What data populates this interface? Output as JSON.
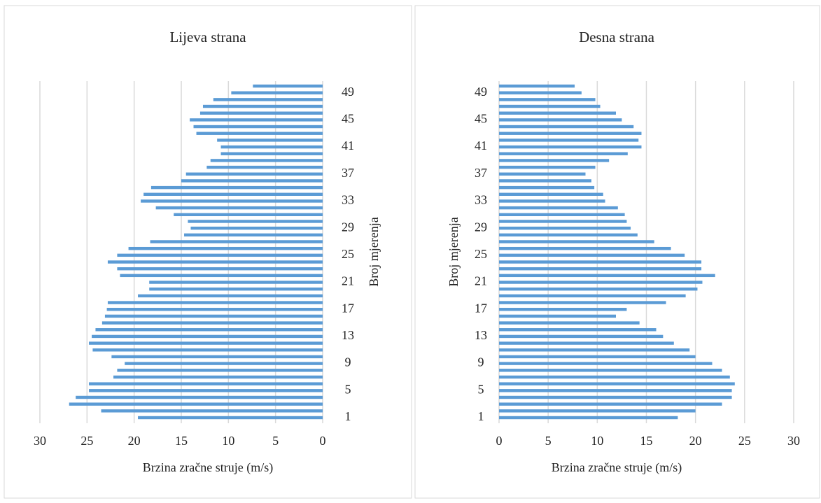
{
  "chart_data": [
    {
      "type": "bar",
      "orientation": "horizontal",
      "title": "Lijeva strana",
      "xlabel": "Brzina zračne struje (m/s)",
      "ylabel": "Broj mjerenja",
      "x_reversed": true,
      "yaxis_side": "right",
      "color": "#5b9bd5",
      "grid": true,
      "categories": [
        1,
        null,
        null,
        null,
        5,
        null,
        null,
        null,
        9,
        null,
        null,
        null,
        13,
        null,
        null,
        null,
        17,
        null,
        null,
        null,
        21,
        null,
        null,
        null,
        25,
        null,
        null,
        null,
        29,
        null,
        null,
        null,
        33,
        null,
        null,
        null,
        37,
        null,
        null,
        null,
        41,
        null,
        null,
        null,
        45,
        null,
        null,
        null,
        49,
        null
      ],
      "values": [
        19.6,
        23.5,
        26.9,
        26.2,
        24.8,
        24.8,
        22.2,
        21.8,
        21.0,
        22.4,
        24.4,
        24.8,
        24.5,
        24.1,
        23.4,
        23.1,
        22.9,
        22.8,
        19.6,
        18.4,
        18.4,
        21.5,
        21.8,
        22.8,
        21.8,
        20.6,
        18.3,
        14.7,
        14.0,
        14.3,
        15.8,
        17.7,
        19.3,
        19.0,
        18.2,
        15.0,
        14.5,
        12.3,
        11.9,
        10.8,
        10.8,
        11.2,
        13.4,
        13.7,
        14.1,
        13.0,
        12.7,
        11.6,
        9.7,
        7.4
      ],
      "xlim": [
        0,
        30
      ],
      "xticks": [
        0,
        5,
        10,
        15,
        20,
        25,
        30
      ]
    },
    {
      "type": "bar",
      "orientation": "horizontal",
      "title": "Desna strana",
      "xlabel": "Brzina zračne struje (m/s)",
      "ylabel": "Broj mjerenja",
      "x_reversed": false,
      "yaxis_side": "left",
      "color": "#5b9bd5",
      "grid": true,
      "categories": [
        1,
        null,
        null,
        null,
        5,
        null,
        null,
        null,
        9,
        null,
        null,
        null,
        13,
        null,
        null,
        null,
        17,
        null,
        null,
        null,
        21,
        null,
        null,
        null,
        25,
        null,
        null,
        null,
        29,
        null,
        null,
        null,
        33,
        null,
        null,
        null,
        37,
        null,
        null,
        null,
        41,
        null,
        null,
        null,
        45,
        null,
        null,
        null,
        49,
        null
      ],
      "values": [
        18.2,
        20.0,
        22.7,
        23.7,
        23.7,
        24.0,
        23.5,
        22.7,
        21.7,
        20.0,
        19.4,
        17.8,
        16.7,
        16.0,
        14.3,
        11.9,
        13.0,
        17.0,
        19.0,
        20.2,
        20.7,
        22.0,
        20.6,
        20.6,
        18.9,
        17.5,
        15.8,
        14.1,
        13.4,
        13.0,
        12.8,
        12.1,
        10.8,
        10.6,
        9.7,
        9.4,
        8.8,
        9.8,
        11.2,
        13.1,
        14.5,
        14.2,
        14.5,
        13.7,
        12.5,
        11.9,
        10.3,
        9.8,
        8.4,
        7.7
      ],
      "xlim": [
        0,
        30
      ],
      "xticks": [
        0,
        5,
        10,
        15,
        20,
        25,
        30
      ]
    }
  ]
}
